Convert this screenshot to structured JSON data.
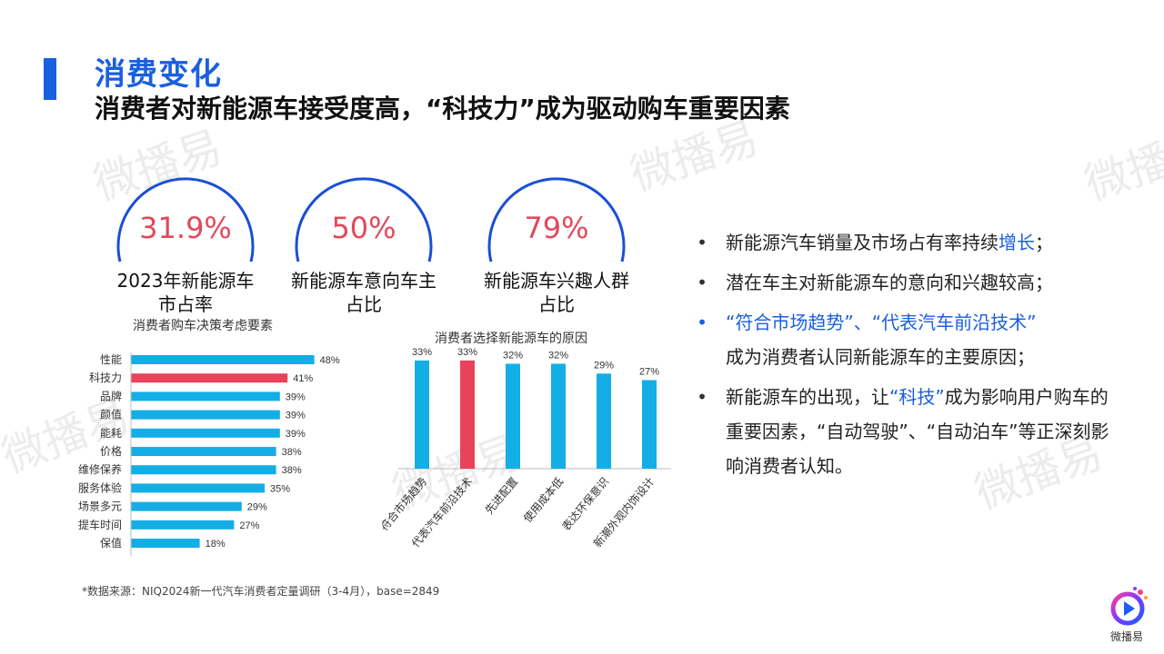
{
  "header": {
    "title": "消费变化",
    "subtitle": "消费者对新能源车接受度高，“科技力”成为驱动购车重要因素"
  },
  "stats": [
    {
      "value": "31.9%",
      "label_lines": [
        "2023年新能源车",
        "市占率"
      ]
    },
    {
      "value": "50%",
      "label_lines": [
        "新能源车意向车主",
        "占比"
      ]
    },
    {
      "value": "79%",
      "label_lines": [
        "新能源车兴趣人群",
        "占比"
      ]
    }
  ],
  "colors": {
    "accent": "#1a5fe0",
    "bar": "#14aee6",
    "highlight": "#e8435a",
    "stat_value": "#e04a5a",
    "ring": "#1a4fd6"
  },
  "chart_data": [
    {
      "type": "bar",
      "orientation": "horizontal",
      "title": "消费者购车决策考虑要素",
      "categories": [
        "性能",
        "科技力",
        "品牌",
        "颜值",
        "能耗",
        "价格",
        "维修保养",
        "服务体验",
        "场景多元",
        "提车时间",
        "保值"
      ],
      "values": [
        48,
        41,
        39,
        39,
        39,
        38,
        38,
        35,
        29,
        27,
        18
      ],
      "value_labels": [
        "48%",
        "41%",
        "39%",
        "39%",
        "39%",
        "38%",
        "38%",
        "35%",
        "29%",
        "27%",
        "18%"
      ],
      "highlight_index": 1,
      "xlim": [
        0,
        50
      ]
    },
    {
      "type": "bar",
      "orientation": "vertical",
      "title": "消费者选择新能源车的原因",
      "categories": [
        "符合市场趋势",
        "代表汽车前沿技术",
        "先进配置",
        "使用成本低",
        "表达环保意识",
        "新潮外观内饰设计"
      ],
      "values": [
        33,
        33,
        32,
        32,
        29,
        27
      ],
      "value_labels": [
        "33%",
        "33%",
        "32%",
        "32%",
        "29%",
        "27%"
      ],
      "highlight_index": 1,
      "ylim": [
        0,
        36
      ]
    }
  ],
  "bullets": [
    {
      "text_before": "新能源汽车销量及市场占有率持续",
      "highlight": "增长",
      "text_after": "；",
      "style": "normal"
    },
    {
      "text_before": "潜在车主对新能源车的意向和兴趣较高；",
      "highlight": "",
      "text_after": "",
      "style": "normal"
    },
    {
      "text_before": "",
      "highlight": "“符合市场趋势”、“代表汽车前沿技术”",
      "text_after": "成为消费者认同新能源车的主要原因；",
      "style": "blue"
    },
    {
      "text_before": "新能源车的出现，让",
      "highlight": "“科技”",
      "text_after": "成为影响用户购车的重要因素，“自动驾驶”、“自动泊车”等正深刻影响消费者认知。",
      "style": "normal"
    }
  ],
  "footnote": "*数据来源：NIQ2024新一代汽车消费者定量调研（3-4月），base=2849",
  "logo": {
    "text": "微播易",
    "icon": "play-logo-icon"
  },
  "watermark": {
    "text": "微播易"
  }
}
